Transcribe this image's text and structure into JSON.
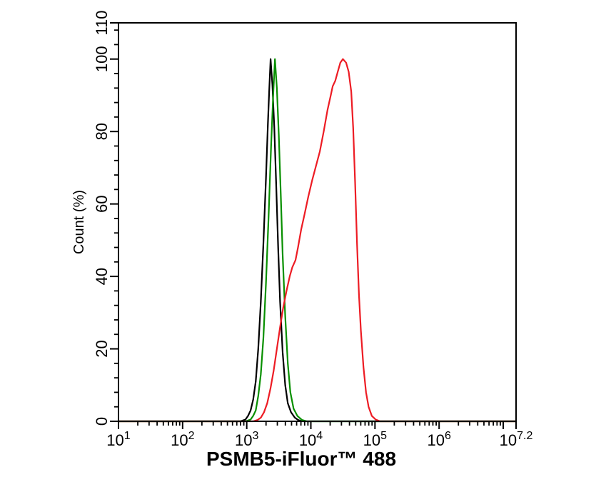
{
  "figure": {
    "background": "#ffffff",
    "frame_color": "#000000"
  },
  "chart_data": {
    "type": "line",
    "subtype": "flow-cytometry-histogram-overlay",
    "title": "",
    "xlabel": "PSMB5-iFluor™ 488",
    "ylabel": "Count  (%)",
    "x_scale": "log10",
    "x_log_range": [
      1,
      7.2
    ],
    "ylim": [
      0,
      110
    ],
    "grid": false,
    "legend": "none",
    "x_axis": {
      "major_ticks": [
        {
          "log": 1,
          "base": "10",
          "exp": "1"
        },
        {
          "log": 2,
          "base": "10",
          "exp": "2"
        },
        {
          "log": 3,
          "base": "10",
          "exp": "3"
        },
        {
          "log": 4,
          "base": "10",
          "exp": "4"
        },
        {
          "log": 5,
          "base": "10",
          "exp": "5"
        },
        {
          "log": 6,
          "base": "10",
          "exp": "6"
        },
        {
          "log": 7,
          "base": "",
          "exp": ""
        },
        {
          "log": 7.2,
          "base": "10",
          "exp": "7.2"
        }
      ],
      "minor_ticks": "log-decades-2-to-9"
    },
    "y_axis": {
      "major_ticks": [
        {
          "value": 0,
          "label": "0"
        },
        {
          "value": 20,
          "label": "20"
        },
        {
          "value": 40,
          "label": "40"
        },
        {
          "value": 60,
          "label": "60"
        },
        {
          "value": 80,
          "label": "80"
        },
        {
          "value": 100,
          "label": "100"
        },
        {
          "value": 110,
          "label": "110"
        }
      ],
      "minor_step": 4
    },
    "series": [
      {
        "name": "black-curve",
        "color": "#000000",
        "peak": {
          "log_x": 3.37,
          "percent": 100
        },
        "points": [
          [
            1,
            0
          ],
          [
            2.9,
            0
          ],
          [
            2.98,
            0.5
          ],
          [
            3.02,
            1.5
          ],
          [
            3.06,
            3
          ],
          [
            3.1,
            6
          ],
          [
            3.14,
            11
          ],
          [
            3.18,
            20
          ],
          [
            3.22,
            33
          ],
          [
            3.26,
            49
          ],
          [
            3.3,
            67
          ],
          [
            3.33,
            82
          ],
          [
            3.35,
            91
          ],
          [
            3.372,
            100
          ],
          [
            3.4,
            93
          ],
          [
            3.43,
            81
          ],
          [
            3.46,
            65
          ],
          [
            3.49,
            48
          ],
          [
            3.52,
            33
          ],
          [
            3.56,
            19
          ],
          [
            3.6,
            10
          ],
          [
            3.64,
            5
          ],
          [
            3.69,
            2.5
          ],
          [
            3.75,
            1
          ],
          [
            3.8,
            0.4
          ],
          [
            3.86,
            0
          ],
          [
            7.2,
            0
          ]
        ]
      },
      {
        "name": "green-curve",
        "color": "#089000",
        "peak": {
          "log_x": 3.44,
          "percent": 100
        },
        "points": [
          [
            1,
            0
          ],
          [
            2.98,
            0
          ],
          [
            3.06,
            0.5
          ],
          [
            3.1,
            1.5
          ],
          [
            3.14,
            3
          ],
          [
            3.18,
            7
          ],
          [
            3.22,
            13
          ],
          [
            3.26,
            23
          ],
          [
            3.3,
            38
          ],
          [
            3.34,
            56
          ],
          [
            3.38,
            76
          ],
          [
            3.41,
            89
          ],
          [
            3.44,
            100
          ],
          [
            3.47,
            92
          ],
          [
            3.5,
            79
          ],
          [
            3.53,
            63
          ],
          [
            3.56,
            46
          ],
          [
            3.6,
            29
          ],
          [
            3.64,
            16
          ],
          [
            3.68,
            8
          ],
          [
            3.73,
            3.5
          ],
          [
            3.79,
            1.5
          ],
          [
            3.86,
            0.4
          ],
          [
            3.94,
            0
          ],
          [
            7.2,
            0
          ]
        ]
      },
      {
        "name": "red-curve",
        "color": "#ed1c24",
        "peak": {
          "log_x": 4.5,
          "percent": 100
        },
        "points": [
          [
            1,
            0
          ],
          [
            3.1,
            0
          ],
          [
            3.17,
            0.4
          ],
          [
            3.22,
            1
          ],
          [
            3.27,
            2.5
          ],
          [
            3.32,
            5
          ],
          [
            3.37,
            9
          ],
          [
            3.42,
            14
          ],
          [
            3.47,
            20
          ],
          [
            3.52,
            26
          ],
          [
            3.57,
            31.5
          ],
          [
            3.62,
            36
          ],
          [
            3.67,
            40
          ],
          [
            3.71,
            42.5
          ],
          [
            3.76,
            44.5
          ],
          [
            3.8,
            48
          ],
          [
            3.85,
            53
          ],
          [
            3.9,
            57
          ],
          [
            3.96,
            62
          ],
          [
            4.02,
            66.5
          ],
          [
            4.08,
            70.5
          ],
          [
            4.14,
            74.5
          ],
          [
            4.2,
            80
          ],
          [
            4.26,
            86
          ],
          [
            4.31,
            90
          ],
          [
            4.34,
            92.5
          ],
          [
            4.38,
            94
          ],
          [
            4.42,
            96.5
          ],
          [
            4.46,
            99
          ],
          [
            4.5,
            100
          ],
          [
            4.55,
            99
          ],
          [
            4.59,
            96.5
          ],
          [
            4.63,
            91
          ],
          [
            4.66,
            81
          ],
          [
            4.69,
            66
          ],
          [
            4.72,
            49
          ],
          [
            4.75,
            35
          ],
          [
            4.78,
            25
          ],
          [
            4.82,
            15
          ],
          [
            4.86,
            8
          ],
          [
            4.9,
            4
          ],
          [
            4.95,
            1.5
          ],
          [
            5.01,
            0.5
          ],
          [
            5.08,
            0
          ],
          [
            7.2,
            0
          ]
        ]
      }
    ]
  }
}
